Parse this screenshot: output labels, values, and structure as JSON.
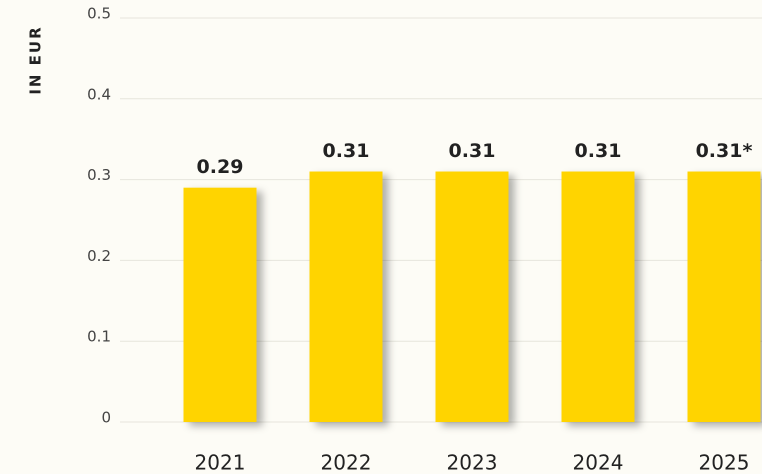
{
  "chart_data": {
    "type": "bar",
    "y_label": "IN EUR",
    "categories": [
      "2021",
      "2022",
      "2023",
      "2024",
      "2025"
    ],
    "values": [
      0.29,
      0.31,
      0.31,
      0.31,
      0.31
    ],
    "value_labels": [
      "0.29",
      "0.31",
      "0.31",
      "0.31",
      "0.31*"
    ],
    "color": "#ffd400",
    "ylim": [
      0,
      0.5
    ],
    "yticks": [
      0,
      0.1,
      0.2,
      0.3,
      0.4,
      0.5
    ],
    "grid": true
  }
}
